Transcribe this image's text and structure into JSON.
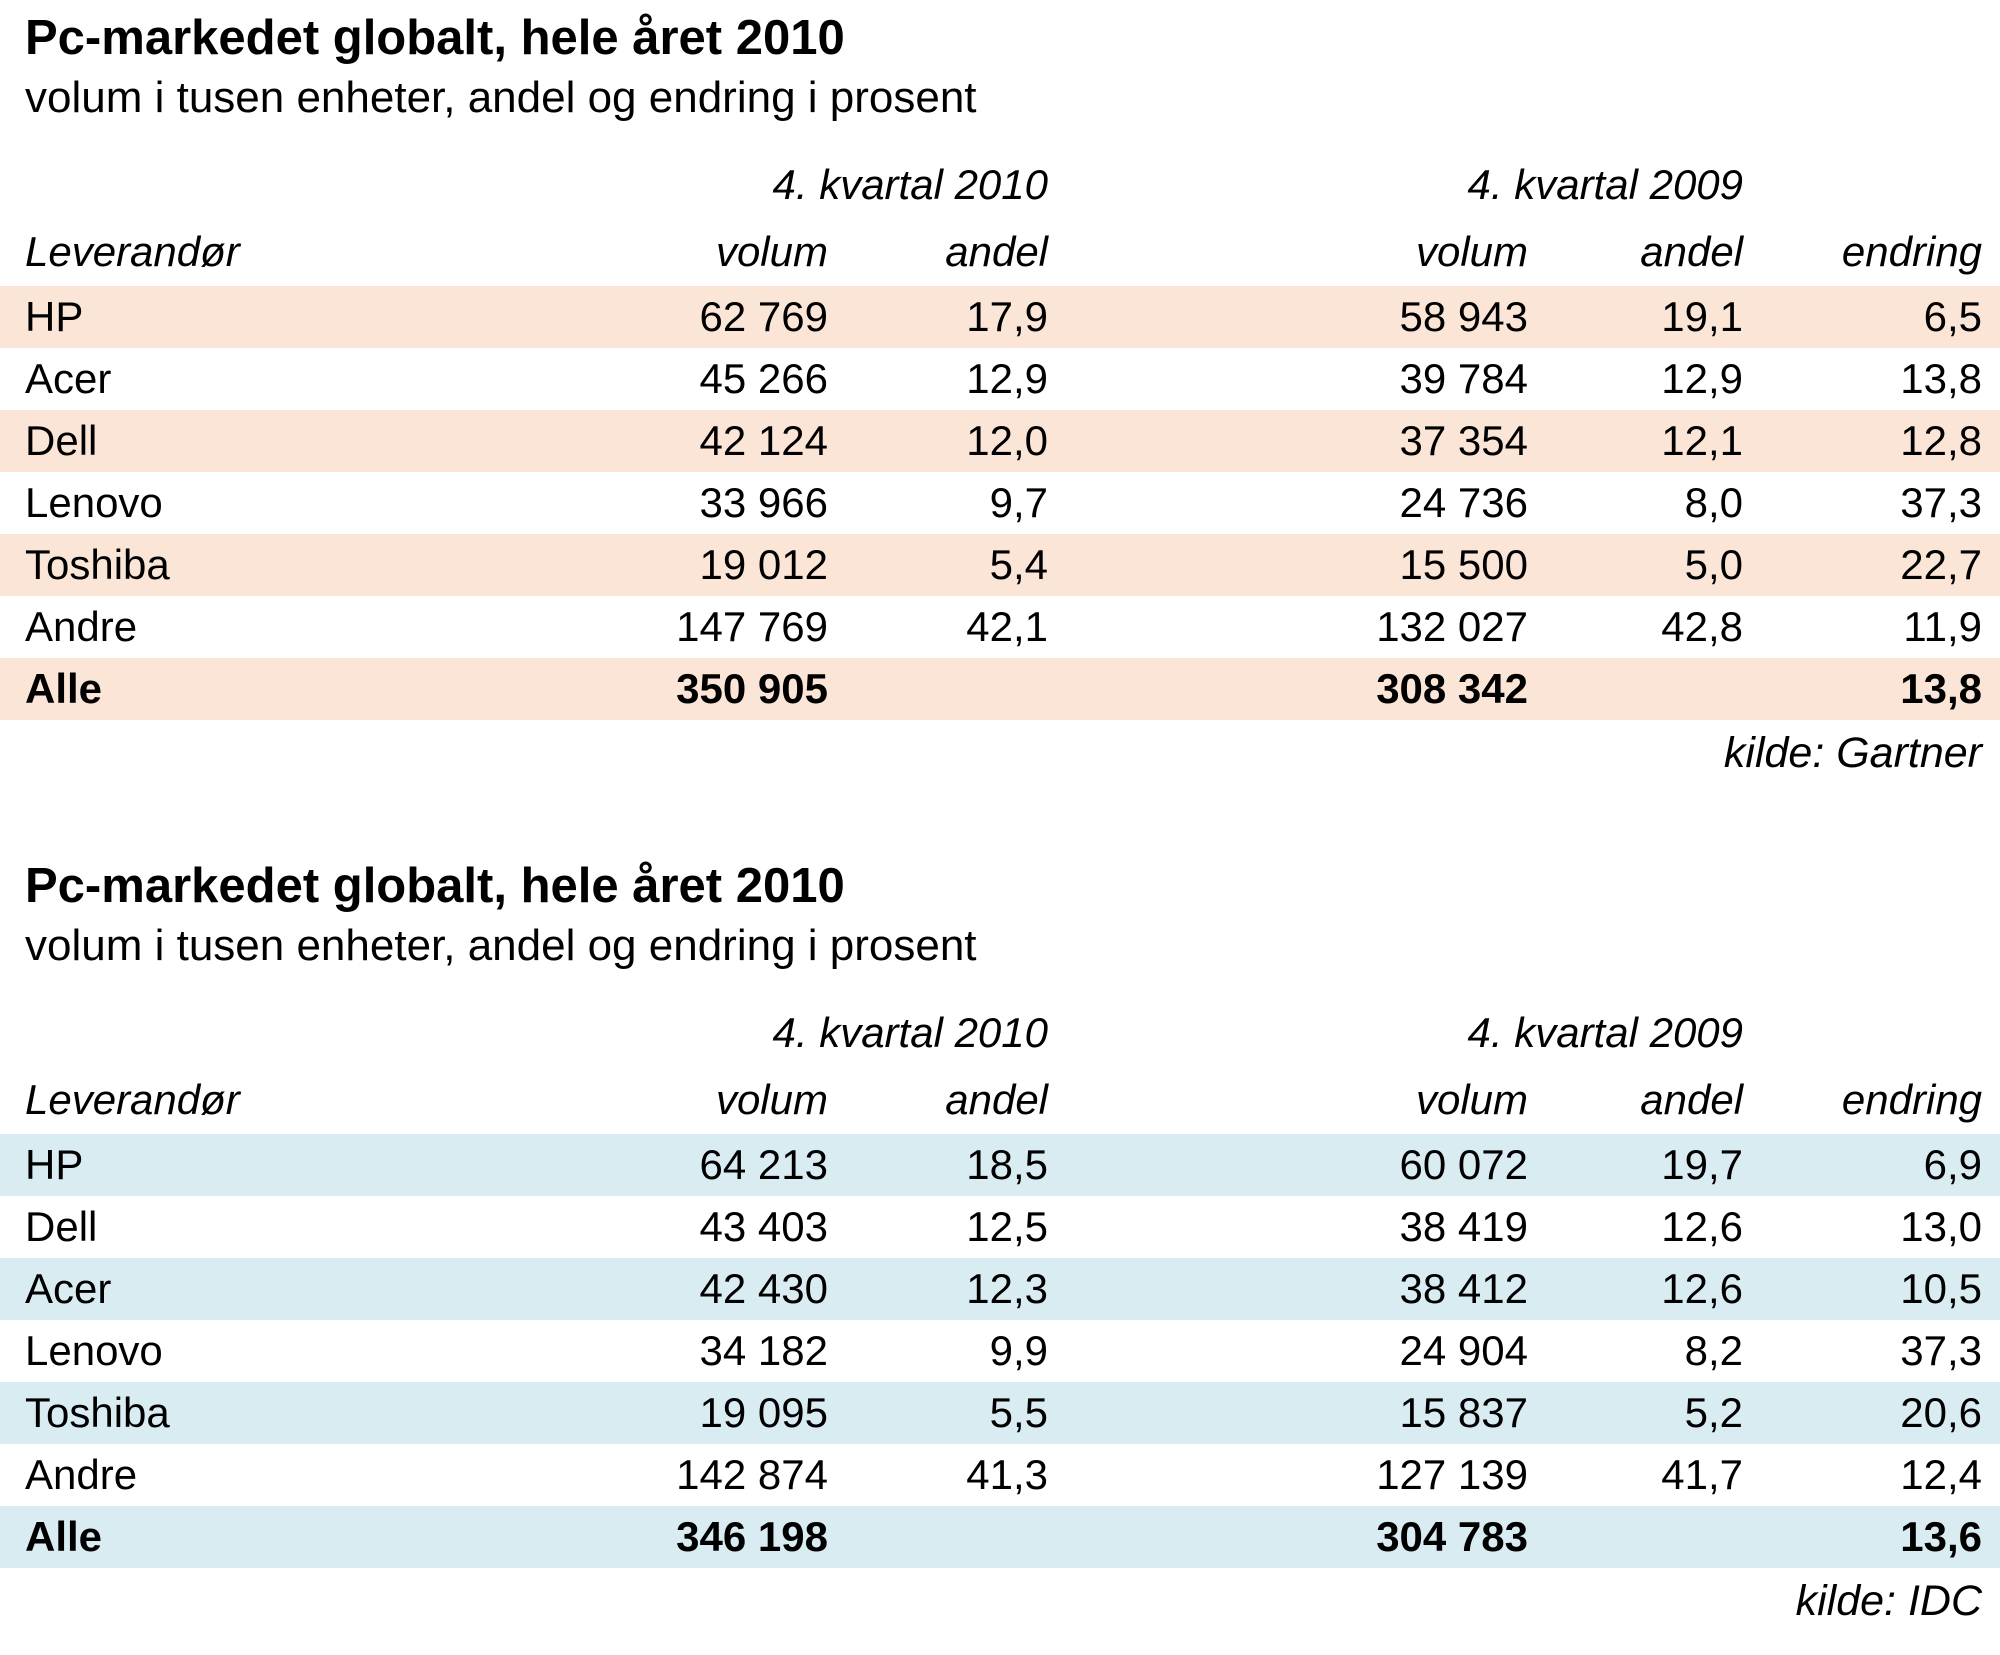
{
  "page": {
    "background": "#ffffff",
    "text_color": "#000000"
  },
  "tables": [
    {
      "id": "gartner",
      "title": "Pc-markedet globalt, hele året 2010",
      "subtitle": "volum i tusen enheter, andel og endring i prosent",
      "stripe_color": "#fbe5d6",
      "group_headers": [
        "4. kvartal 2010",
        "4. kvartal 2009"
      ],
      "col_headers": [
        "Leverandør",
        "volum",
        "andel",
        "volum",
        "andel",
        "endring"
      ],
      "rows": [
        {
          "vendor": "HP",
          "v10": "62 769",
          "a10": "17,9",
          "v09": "58 943",
          "a09": "19,1",
          "chg": "6,5"
        },
        {
          "vendor": "Acer",
          "v10": "45 266",
          "a10": "12,9",
          "v09": "39 784",
          "a09": "12,9",
          "chg": "13,8"
        },
        {
          "vendor": "Dell",
          "v10": "42 124",
          "a10": "12,0",
          "v09": "37 354",
          "a09": "12,1",
          "chg": "12,8"
        },
        {
          "vendor": "Lenovo",
          "v10": "33 966",
          "a10": "9,7",
          "v09": "24 736",
          "a09": "8,0",
          "chg": "37,3"
        },
        {
          "vendor": "Toshiba",
          "v10": "19 012",
          "a10": "5,4",
          "v09": "15 500",
          "a09": "5,0",
          "chg": "22,7"
        },
        {
          "vendor": "Andre",
          "v10": "147 769",
          "a10": "42,1",
          "v09": "132 027",
          "a09": "42,8",
          "chg": "11,9"
        },
        {
          "vendor": "Alle",
          "v10": "350 905",
          "a10": "",
          "v09": "308 342",
          "a09": "",
          "chg": "13,8"
        }
      ],
      "source": "kilde: Gartner"
    },
    {
      "id": "idc",
      "title": "Pc-markedet globalt, hele året 2010",
      "subtitle": "volum i tusen enheter, andel og endring i prosent",
      "stripe_color": "#d9ecf2",
      "group_headers": [
        "4. kvartal 2010",
        "4. kvartal 2009"
      ],
      "col_headers": [
        "Leverandør",
        "volum",
        "andel",
        "volum",
        "andel",
        "endring"
      ],
      "rows": [
        {
          "vendor": "HP",
          "v10": "64 213",
          "a10": "18,5",
          "v09": "60 072",
          "a09": "19,7",
          "chg": "6,9"
        },
        {
          "vendor": "Dell",
          "v10": "43 403",
          "a10": "12,5",
          "v09": "38 419",
          "a09": "12,6",
          "chg": "13,0"
        },
        {
          "vendor": "Acer",
          "v10": "42 430",
          "a10": "12,3",
          "v09": "38 412",
          "a09": "12,6",
          "chg": "10,5"
        },
        {
          "vendor": "Lenovo",
          "v10": "34 182",
          "a10": "9,9",
          "v09": "24 904",
          "a09": "8,2",
          "chg": "37,3"
        },
        {
          "vendor": "Toshiba",
          "v10": "19 095",
          "a10": "5,5",
          "v09": "15 837",
          "a09": "5,2",
          "chg": "20,6"
        },
        {
          "vendor": "Andre",
          "v10": "142 874",
          "a10": "41,3",
          "v09": "127 139",
          "a09": "41,7",
          "chg": "12,4"
        },
        {
          "vendor": "Alle",
          "v10": "346 198",
          "a10": "",
          "v09": "304 783",
          "a09": "",
          "chg": "13,6"
        }
      ],
      "source": "kilde: IDC"
    }
  ],
  "chart_data": [
    {
      "type": "table",
      "title": "Pc-markedet globalt, hele året 2010",
      "subtitle": "volum i tusen enheter, andel og endring i prosent",
      "source": "Gartner",
      "columns": [
        "Leverandør",
        "volum Q4 2010",
        "andel Q4 2010 (%)",
        "volum Q4 2009",
        "andel Q4 2009 (%)",
        "endring (%)"
      ],
      "rows": [
        [
          "HP",
          62769,
          17.9,
          58943,
          19.1,
          6.5
        ],
        [
          "Acer",
          45266,
          12.9,
          39784,
          12.9,
          13.8
        ],
        [
          "Dell",
          42124,
          12.0,
          37354,
          12.1,
          12.8
        ],
        [
          "Lenovo",
          33966,
          9.7,
          24736,
          8.0,
          37.3
        ],
        [
          "Toshiba",
          19012,
          5.4,
          15500,
          5.0,
          22.7
        ],
        [
          "Andre",
          147769,
          42.1,
          132027,
          42.8,
          11.9
        ],
        [
          "Alle",
          350905,
          null,
          308342,
          null,
          13.8
        ]
      ]
    },
    {
      "type": "table",
      "title": "Pc-markedet globalt, hele året 2010",
      "subtitle": "volum i tusen enheter, andel og endring i prosent",
      "source": "IDC",
      "columns": [
        "Leverandør",
        "volum Q4 2010",
        "andel Q4 2010 (%)",
        "volum Q4 2009",
        "andel Q4 2009 (%)",
        "endring (%)"
      ],
      "rows": [
        [
          "HP",
          64213,
          18.5,
          60072,
          19.7,
          6.9
        ],
        [
          "Dell",
          43403,
          12.5,
          38419,
          12.6,
          13.0
        ],
        [
          "Acer",
          42430,
          12.3,
          38412,
          12.6,
          10.5
        ],
        [
          "Lenovo",
          34182,
          9.9,
          24904,
          8.2,
          37.3
        ],
        [
          "Toshiba",
          19095,
          5.5,
          15837,
          5.2,
          20.6
        ],
        [
          "Andre",
          142874,
          41.3,
          127139,
          41.7,
          12.4
        ],
        [
          "Alle",
          346198,
          null,
          304783,
          null,
          13.6
        ]
      ]
    }
  ]
}
